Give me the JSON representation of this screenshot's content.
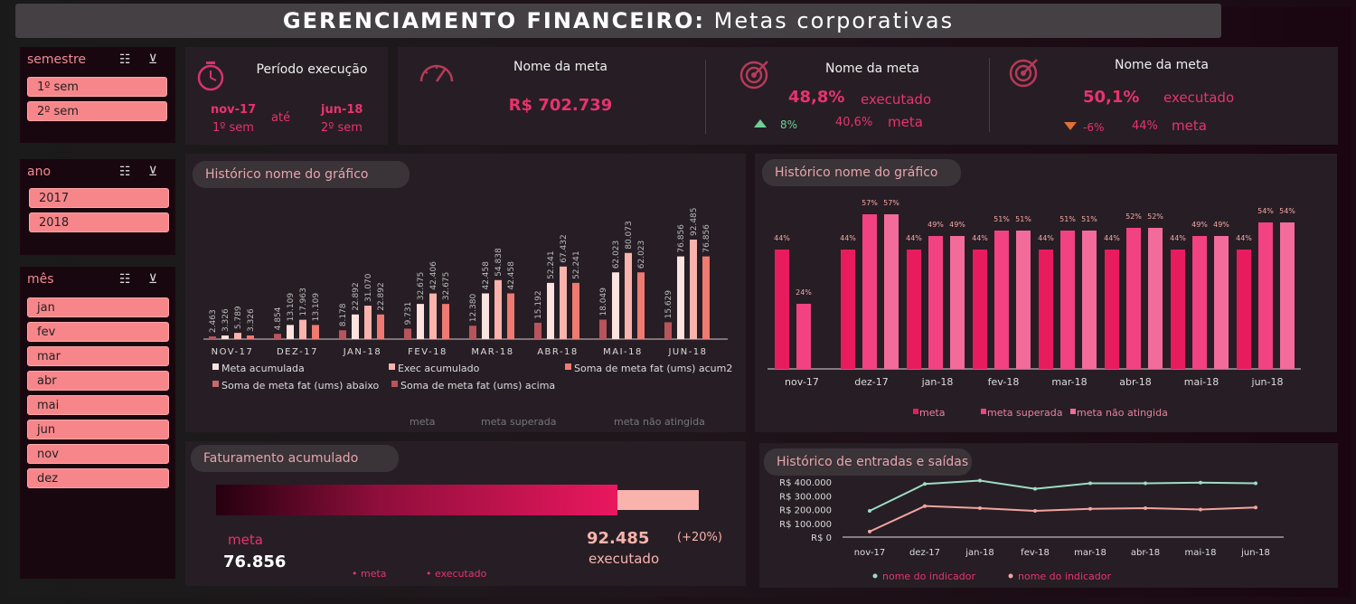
{
  "title": {
    "bold": "GERENCIAMENTO FINANCEIRO:",
    "rest": " Metas corporativas"
  },
  "slicers": {
    "semestre": {
      "label": "semestre",
      "items": [
        "1º sem",
        "2º sem"
      ]
    },
    "ano": {
      "label": "ano",
      "items": [
        "2017",
        "2018"
      ]
    },
    "mes": {
      "label": "mês",
      "items": [
        "jan",
        "fev",
        "mar",
        "abr",
        "mai",
        "jun",
        "nov",
        "dez"
      ]
    }
  },
  "periodo": {
    "label": "Período execução",
    "start": "nov-17",
    "start_sem": "1º sem",
    "ate": "até",
    "end": "jun-18",
    "end_sem": "2º sem"
  },
  "kpi1": {
    "label": "Nome da meta",
    "value": "R$ 702.739"
  },
  "kpi2": {
    "label": "Nome da meta",
    "pct": "48,8%",
    "executado": "executado",
    "delta": "8%",
    "meta_pct": "40,6%",
    "meta": "meta"
  },
  "kpi3": {
    "label": "Nome da meta",
    "pct": "50,1%",
    "executado": "executado",
    "delta": "-6%",
    "meta_pct": "44%",
    "meta": "meta"
  },
  "colors": {
    "accent": "#e8336d",
    "pink_light": "#f9b3ac",
    "up": "#6fcf97",
    "down": "#e0703a"
  },
  "chart1": {
    "title": "Histórico nome do gráfico",
    "legend": [
      "Meta acumulada",
      "Exec acumulado",
      "Soma de meta fat (ums) acum2",
      "Soma de meta fat (ums) abaixo",
      "Soma de meta fat (ums) acima"
    ],
    "legend2": [
      "meta",
      "meta superada",
      "meta não atingida"
    ]
  },
  "chart2": {
    "title": "Histórico nome do gráfico",
    "legend": [
      "meta",
      "meta superada",
      "meta não atingida"
    ]
  },
  "faturamento": {
    "title": "Faturamento acumulado",
    "meta_label": "meta",
    "meta_value": "76.856",
    "exec_value": "92.485",
    "exec_label": "executado",
    "pct": "(+20%)",
    "legend": [
      "meta",
      "executado"
    ]
  },
  "chart4": {
    "title": "Histórico de entradas e saídas",
    "legend": [
      "nome do indicador",
      "nome do indicador"
    ]
  },
  "chart_data": [
    {
      "type": "bar",
      "categories": [
        "NOV-17",
        "DEZ-17",
        "JAN-18",
        "FEV-18",
        "MAR-18",
        "ABR-18",
        "MAI-18",
        "JUN-18"
      ],
      "series": [
        {
          "name": "Meta acumulada",
          "values": [
            3326,
            13109,
            22892,
            32675,
            42458,
            52241,
            62023,
            76856
          ]
        },
        {
          "name": "Exec acumulado",
          "values": [
            5789,
            17963,
            31070,
            42406,
            54838,
            67432,
            80073,
            92485
          ]
        },
        {
          "name": "Soma de meta fat (ums) acum2",
          "values": [
            3326,
            13109,
            22892,
            32675,
            42458,
            52241,
            62023,
            76856
          ]
        },
        {
          "name": "Soma de meta fat (ums) acima",
          "values": [
            2463,
            4854,
            8178,
            9731,
            12380,
            15192,
            18049,
            15629
          ]
        }
      ]
    },
    {
      "type": "bar",
      "categories": [
        "nov-17",
        "dez-17",
        "jan-18",
        "fev-18",
        "mar-18",
        "abr-18",
        "mai-18",
        "jun-18"
      ],
      "series": [
        {
          "name": "meta",
          "values": [
            44,
            44,
            44,
            44,
            44,
            44,
            44,
            44
          ]
        },
        {
          "name": "meta superada",
          "values": [
            24,
            57,
            49,
            51,
            51,
            52,
            49,
            54
          ]
        },
        {
          "name": "meta não atingida",
          "values": [
            null,
            57,
            49,
            51,
            51,
            52,
            49,
            54
          ]
        }
      ]
    },
    {
      "type": "bar",
      "values": {
        "meta": 76856,
        "executado": 92485
      }
    },
    {
      "type": "line",
      "categories": [
        "nov-17",
        "dez-17",
        "jan-18",
        "fev-18",
        "mar-18",
        "abr-18",
        "mai-18",
        "jun-18"
      ],
      "yticks": [
        "R$ 400.000",
        "R$ 300.000",
        "R$ 200.000",
        "R$ 100.000",
        "R$ 0"
      ],
      "ylim": [
        0,
        400000
      ],
      "series": [
        {
          "name": "nome do indicador",
          "values": [
            190000,
            385000,
            410000,
            350000,
            390000,
            390000,
            395000,
            390000
          ]
        },
        {
          "name": "nome do indicador",
          "values": [
            40000,
            225000,
            210000,
            190000,
            205000,
            210000,
            200000,
            215000
          ]
        }
      ]
    }
  ]
}
